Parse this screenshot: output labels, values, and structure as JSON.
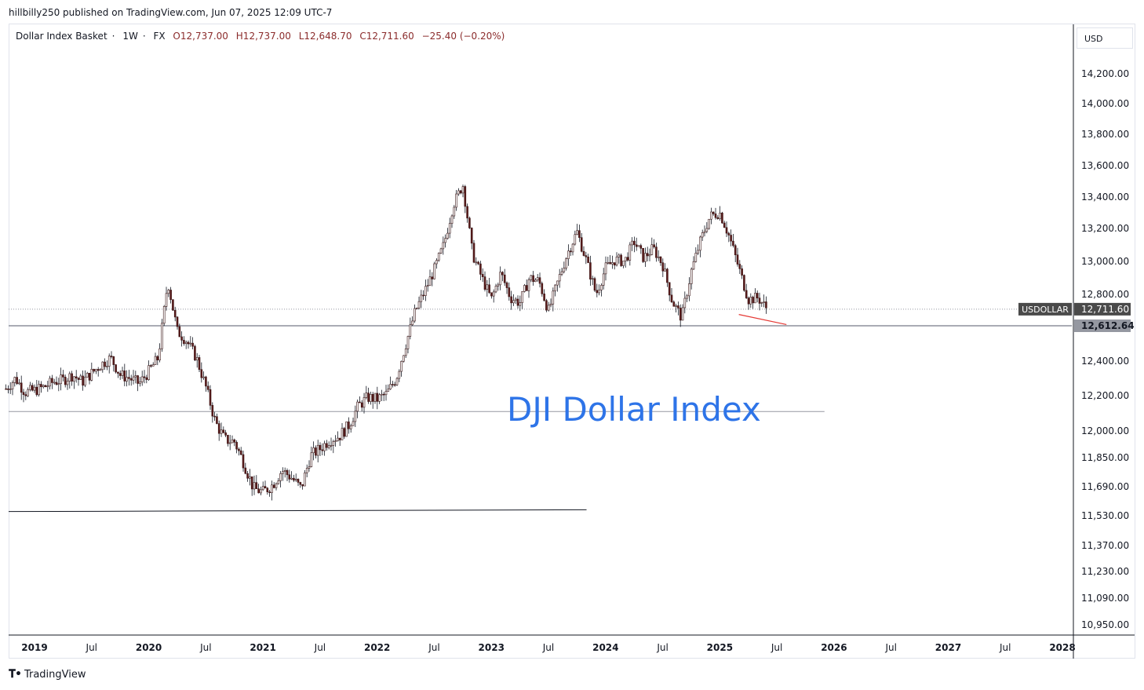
{
  "header": {
    "publish_line": "hillbilly250 published on TradingView.com, Jun 07, 2025 12:09 UTC-7"
  },
  "legend": {
    "symbol": "Dollar Index Basket",
    "interval": "1W",
    "source": "FX",
    "open": "O12,737.00",
    "high": "H12,737.00",
    "low": "L12,648.70",
    "close": "C12,711.60",
    "change": "−25.40 (−0.20%)"
  },
  "price_scale": {
    "currency": "USD"
  },
  "annotation_text": "DJI Dollar Index",
  "footer": {
    "brand": "TradingView"
  },
  "colors": {
    "annotation": "#2e74e8",
    "candle_body": "#5b1b1b",
    "trendline_red": "#e53935",
    "hline": "#787b86"
  },
  "chart_data": {
    "type": "candlestick",
    "title": "",
    "symbol_label": "USDOLLAR",
    "last_price": "12,711.60",
    "hline_price_label": "12,612.64",
    "last_value": 12711.6,
    "hline_value": 12612.64,
    "y_ticks": [
      14200,
      14000,
      13800,
      13600,
      13400,
      13200,
      13000,
      12800,
      12400,
      12200,
      12000,
      11850,
      11690,
      11530,
      11370,
      11230,
      11090,
      10950
    ],
    "y_tick_labels": [
      "14,200.00",
      "14,000.00",
      "13,800.00",
      "13,600.00",
      "13,400.00",
      "13,200.00",
      "13,000.00",
      "12,800.00",
      "12,400.00",
      "12,200.00",
      "12,000.00",
      "11,850.00",
      "11,690.00",
      "11,530.00",
      "11,370.00",
      "11,230.00",
      "11,090.00",
      "10,950.00"
    ],
    "x_ticks": [
      {
        "label": "2019",
        "date": "2019-01",
        "bold": true
      },
      {
        "label": "Jul",
        "date": "2019-07",
        "bold": false
      },
      {
        "label": "2020",
        "date": "2020-01",
        "bold": true
      },
      {
        "label": "Jul",
        "date": "2020-07",
        "bold": false
      },
      {
        "label": "2021",
        "date": "2021-01",
        "bold": true
      },
      {
        "label": "Jul",
        "date": "2021-07",
        "bold": false
      },
      {
        "label": "2022",
        "date": "2022-01",
        "bold": true
      },
      {
        "label": "Jul",
        "date": "2022-07",
        "bold": false
      },
      {
        "label": "2023",
        "date": "2023-01",
        "bold": true
      },
      {
        "label": "Jul",
        "date": "2023-07",
        "bold": false
      },
      {
        "label": "2024",
        "date": "2024-01",
        "bold": true
      },
      {
        "label": "Jul",
        "date": "2024-07",
        "bold": false
      },
      {
        "label": "2025",
        "date": "2025-01",
        "bold": true
      },
      {
        "label": "Jul",
        "date": "2025-07",
        "bold": false
      },
      {
        "label": "2026",
        "date": "2026-01",
        "bold": true
      },
      {
        "label": "Jul",
        "date": "2026-07",
        "bold": false
      },
      {
        "label": "2027",
        "date": "2027-01",
        "bold": true
      },
      {
        "label": "Jul",
        "date": "2027-07",
        "bold": false
      },
      {
        "label": "2028",
        "date": "2028-01",
        "bold": true
      }
    ],
    "price_path": [
      [
        "2018-10",
        12240
      ],
      [
        "2018-11",
        12300
      ],
      [
        "2018-12",
        12220
      ],
      [
        "2019-01",
        12230
      ],
      [
        "2019-02",
        12250
      ],
      [
        "2019-03",
        12280
      ],
      [
        "2019-04",
        12290
      ],
      [
        "2019-05",
        12320
      ],
      [
        "2019-06",
        12280
      ],
      [
        "2019-07",
        12330
      ],
      [
        "2019-08",
        12380
      ],
      [
        "2019-09",
        12420
      ],
      [
        "2019-10",
        12320
      ],
      [
        "2019-11",
        12300
      ],
      [
        "2019-12",
        12270
      ],
      [
        "2020-01",
        12340
      ],
      [
        "2020-02",
        12420
      ],
      [
        "2020-03",
        12880
      ],
      [
        "2020-04",
        12580
      ],
      [
        "2020-05",
        12520
      ],
      [
        "2020-06",
        12420
      ],
      [
        "2020-07",
        12250
      ],
      [
        "2020-08",
        12050
      ],
      [
        "2020-09",
        11950
      ],
      [
        "2020-10",
        11940
      ],
      [
        "2020-11",
        11820
      ],
      [
        "2020-12",
        11680
      ],
      [
        "2021-01",
        11660
      ],
      [
        "2021-02",
        11700
      ],
      [
        "2021-03",
        11780
      ],
      [
        "2021-04",
        11740
      ],
      [
        "2021-05",
        11680
      ],
      [
        "2021-06",
        11860
      ],
      [
        "2021-07",
        11900
      ],
      [
        "2021-08",
        11950
      ],
      [
        "2021-09",
        11970
      ],
      [
        "2021-10",
        12030
      ],
      [
        "2021-11",
        12140
      ],
      [
        "2021-12",
        12190
      ],
      [
        "2022-01",
        12180
      ],
      [
        "2022-02",
        12210
      ],
      [
        "2022-03",
        12300
      ],
      [
        "2022-04",
        12500
      ],
      [
        "2022-05",
        12700
      ],
      [
        "2022-06",
        12820
      ],
      [
        "2022-07",
        12950
      ],
      [
        "2022-08",
        13100
      ],
      [
        "2022-09",
        13350
      ],
      [
        "2022-10",
        13480
      ],
      [
        "2022-11",
        13050
      ],
      [
        "2022-12",
        12900
      ],
      [
        "2023-01",
        12770
      ],
      [
        "2023-02",
        12930
      ],
      [
        "2023-03",
        12780
      ],
      [
        "2023-04",
        12750
      ],
      [
        "2023-05",
        12900
      ],
      [
        "2023-06",
        12880
      ],
      [
        "2023-07",
        12700
      ],
      [
        "2023-08",
        12880
      ],
      [
        "2023-09",
        13050
      ],
      [
        "2023-10",
        13180
      ],
      [
        "2023-11",
        13000
      ],
      [
        "2023-12",
        12800
      ],
      [
        "2024-01",
        12960
      ],
      [
        "2024-02",
        13010
      ],
      [
        "2024-03",
        13000
      ],
      [
        "2024-04",
        13120
      ],
      [
        "2024-05",
        13020
      ],
      [
        "2024-06",
        13080
      ],
      [
        "2024-07",
        12980
      ],
      [
        "2024-08",
        12760
      ],
      [
        "2024-09",
        12660
      ],
      [
        "2024-10",
        12940
      ],
      [
        "2024-11",
        13130
      ],
      [
        "2024-12",
        13280
      ],
      [
        "2025-01",
        13300
      ],
      [
        "2025-02",
        13150
      ],
      [
        "2025-03",
        12960
      ],
      [
        "2025-04",
        12770
      ],
      [
        "2025-05",
        12780
      ],
      [
        "2025-06",
        12711.6
      ]
    ],
    "drawings": [
      {
        "kind": "hline",
        "price": 12612.64,
        "from": "2018-10",
        "to": "2028-02"
      },
      {
        "kind": "trendline",
        "price_start": 12110,
        "price_end": 12110,
        "from": "2018-10",
        "to": "2025-12"
      },
      {
        "kind": "trendline",
        "price_start": 11553,
        "price_end": 11563,
        "from": "2018-10",
        "to": "2023-11"
      },
      {
        "kind": "trendline_red",
        "price_start": 12680,
        "price_end": 12620,
        "from": "2025-03",
        "to": "2025-08"
      },
      {
        "kind": "dotted_hline",
        "price": 12711.6,
        "from": "2018-10",
        "to": "2028-02"
      }
    ]
  }
}
